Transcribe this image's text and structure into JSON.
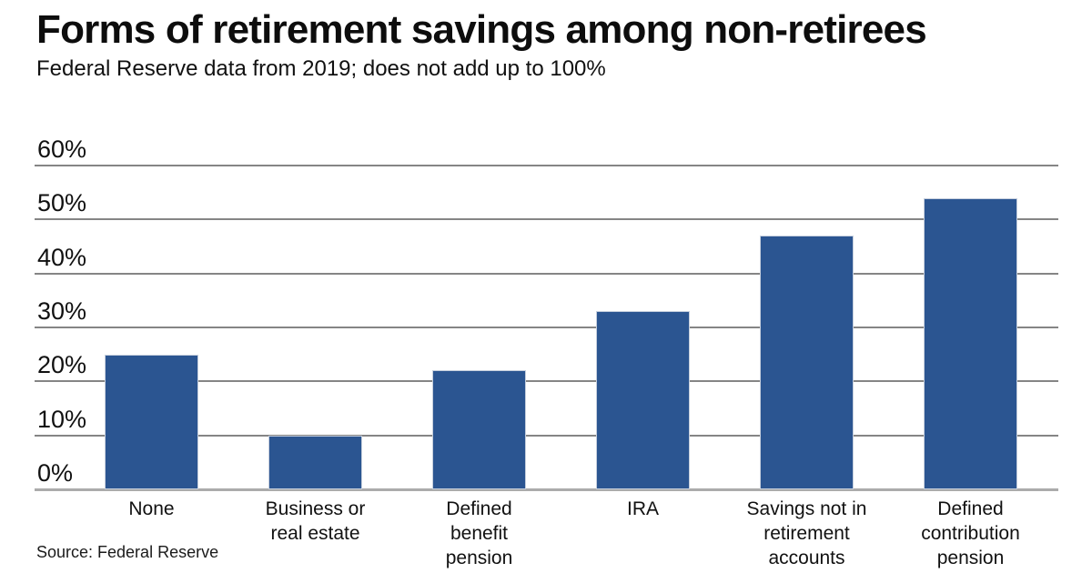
{
  "header": {
    "title": "Forms of retirement savings among non-retirees",
    "subtitle": "Federal Reserve data from 2019; does not add up to 100%"
  },
  "footer": {
    "source": "Source: Federal Reserve"
  },
  "chart_data": {
    "type": "bar",
    "title": "Forms of retirement savings among non-retirees",
    "subtitle": "Federal Reserve data from 2019; does not add up to 100%",
    "categories": [
      "None",
      "Business or real estate",
      "Defined benefit pension",
      "IRA",
      "Savings not in retirement accounts",
      "Defined contribution pension"
    ],
    "category_display_lines": [
      "None",
      "Business or\nreal estate",
      "Defined\nbenefit\npension",
      "IRA",
      "Savings not in\nretirement\naccounts",
      "Defined\ncontribution\npension"
    ],
    "values": [
      25,
      10,
      22,
      33,
      47,
      54
    ],
    "unit": "%",
    "xlabel": "",
    "ylabel": "",
    "ylim": [
      0,
      60
    ],
    "ytick_step": 10,
    "ytick_labels": [
      "0%",
      "10%",
      "20%",
      "30%",
      "40%",
      "50%",
      "60%"
    ],
    "grid": true,
    "legend": "none",
    "colors": {
      "bar": "#2B5591",
      "bar_edge": "#c6cfdd",
      "gridline": "#858585",
      "axis_line": "#ababab",
      "text": "#111111",
      "background": "#ffffff"
    }
  }
}
